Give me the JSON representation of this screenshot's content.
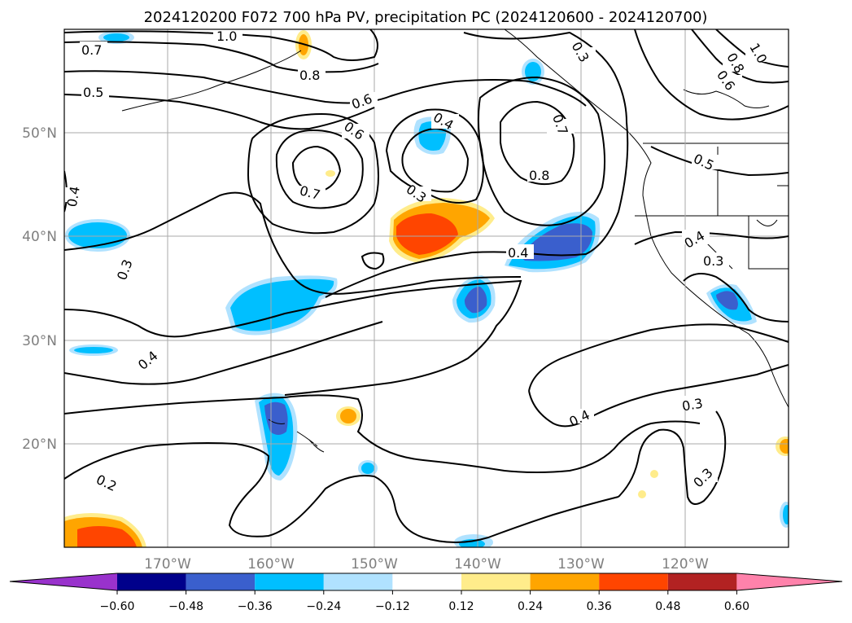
{
  "chart_data": {
    "type": "contour-map",
    "title": "2024120200 F072 700 hPa PV, precipitation PC (2024120600 - 2024120700)",
    "x_ticks": [
      "170°W",
      "160°W",
      "150°W",
      "140°W",
      "130°W",
      "120°W"
    ],
    "x_tick_values": [
      -170,
      -160,
      -150,
      -140,
      -130,
      -120
    ],
    "y_ticks": [
      "50°N",
      "40°N",
      "30°N",
      "20°N"
    ],
    "y_tick_values": [
      50,
      40,
      30,
      20
    ],
    "xlim": [
      -180,
      -110
    ],
    "ylim": [
      10,
      60
    ],
    "grid": true,
    "colorbar": {
      "ticks": [
        "−0.60",
        "−0.48",
        "−0.36",
        "−0.24",
        "−0.12",
        "0.12",
        "0.24",
        "0.36",
        "0.48",
        "0.60"
      ],
      "colors": [
        "#9932cc",
        "#00008b",
        "#3a5fcd",
        "#00bfff",
        "#b0e2ff",
        "#ffffff",
        "#ffec8b",
        "#ffa500",
        "#ff4500",
        "#b22222",
        "#ff82ab"
      ],
      "extend": "both"
    },
    "contour_labels": [
      "1.0",
      "0.7",
      "0.5",
      "0.8",
      "0.6",
      "0.6",
      "0.7",
      "0.4",
      "0.3",
      "0.4",
      "0.3",
      "0.7",
      "0.8",
      "0.3",
      "0.8",
      "0.6",
      "1.0",
      "0.5",
      "0.4",
      "0.3",
      "0.4",
      "0.3",
      "0.4",
      "0.3",
      "0.4",
      "0.2",
      "0.3"
    ]
  }
}
